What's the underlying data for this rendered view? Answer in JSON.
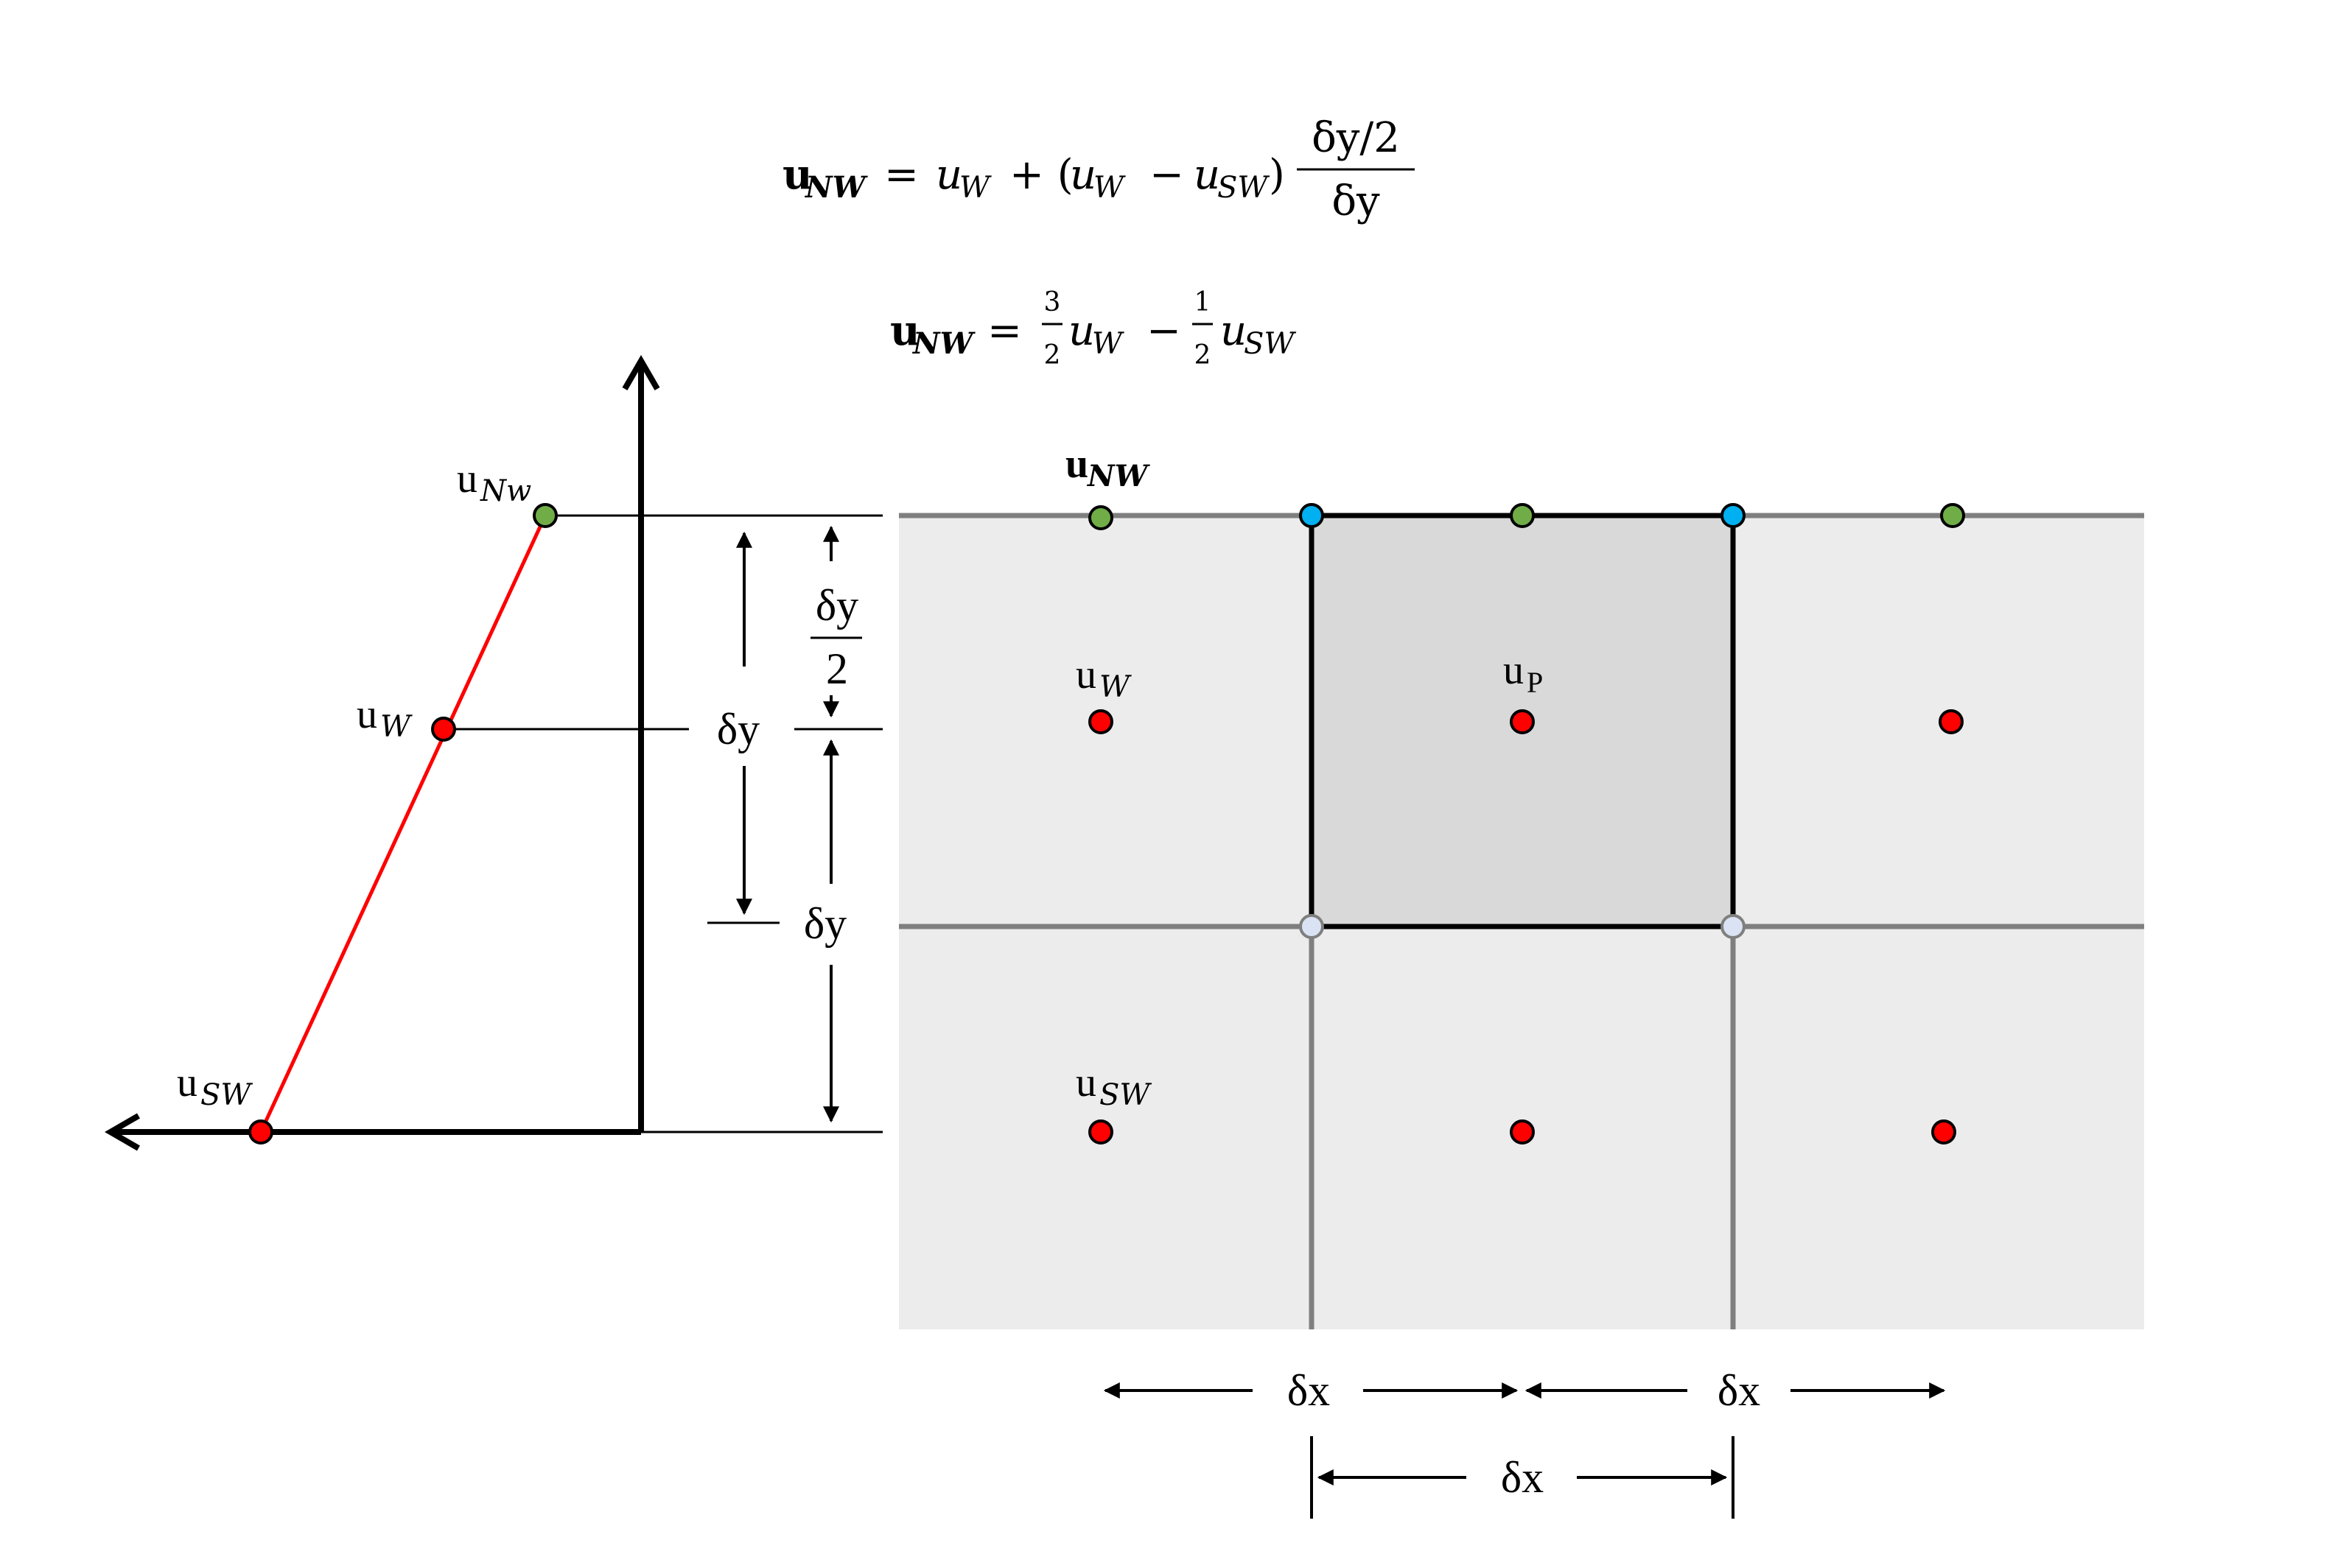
{
  "equations": {
    "eq1_lhs": "u",
    "eq1_lhs_sub": "NW",
    "eq1_eq": "=",
    "eq1_u1": "u",
    "eq1_u1_sub": "W",
    "eq1_plus": "+ (",
    "eq1_u2": "u",
    "eq1_u2_sub": "W",
    "eq1_minus": "−",
    "eq1_u3": "u",
    "eq1_u3_sub": "SW",
    "eq1_close": ")",
    "eq1_frac_num": "δy/2",
    "eq1_frac_den": "δy",
    "eq2_lhs": "u",
    "eq2_lhs_sub": "NW",
    "eq2_eq": "=",
    "eq2_c1_num": "3",
    "eq2_c1_den": "2",
    "eq2_u1": "u",
    "eq2_u1_sub": "W",
    "eq2_minus": "−",
    "eq2_c2_num": "1",
    "eq2_c2_den": "2",
    "eq2_u2": "u",
    "eq2_u2_sub": "SW"
  },
  "profile_labels": {
    "u_nw": "u",
    "u_nw_sub": "Nw",
    "u_w": "u",
    "u_w_sub": "W",
    "u_sw": "u",
    "u_sw_sub": "SW"
  },
  "grid_labels": {
    "u_nw_bold": "u",
    "u_nw_bold_sub": "NW",
    "u_w": "u",
    "u_w_sub": "W",
    "u_p": "u",
    "u_p_sub": "P",
    "u_sw": "u",
    "u_sw_sub": "SW"
  },
  "dimensions": {
    "dy_left": "δy",
    "dy_half_num": "δy",
    "dy_half_den": "2",
    "dy_right": "δy",
    "dx_1": "δx",
    "dx_2": "δx",
    "dx_3": "δx"
  },
  "colors": {
    "node_center": "#ff0000",
    "node_face_ns": "#70ad47",
    "node_corner_top": "#00b0f0",
    "node_corner_bottom": "#dae3f3",
    "profile_line": "#ff0000",
    "cell_fill": "#ececec",
    "active_cell_fill": "#d9d9d9",
    "grid_line": "#7f7f7f"
  }
}
